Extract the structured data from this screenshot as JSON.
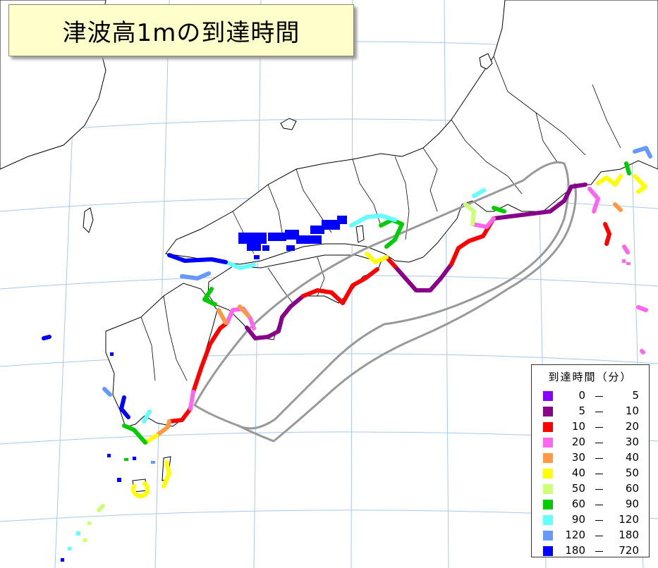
{
  "title": "津波高1mの到達時間",
  "legend": {
    "title": "到達時間（分）",
    "dash": "－",
    "items": [
      {
        "lo": "0",
        "hi": "5",
        "color": "#8800ff"
      },
      {
        "lo": "5",
        "hi": "10",
        "color": "#880088"
      },
      {
        "lo": "10",
        "hi": "20",
        "color": "#ff0000"
      },
      {
        "lo": "20",
        "hi": "30",
        "color": "#ff66ee"
      },
      {
        "lo": "30",
        "hi": "40",
        "color": "#ff9944"
      },
      {
        "lo": "40",
        "hi": "50",
        "color": "#ffff00"
      },
      {
        "lo": "50",
        "hi": "60",
        "color": "#ccff77"
      },
      {
        "lo": "60",
        "hi": "90",
        "color": "#00cc00"
      },
      {
        "lo": "90",
        "hi": "120",
        "color": "#66ffff"
      },
      {
        "lo": "120",
        "hi": "180",
        "color": "#6699ff"
      },
      {
        "lo": "180",
        "hi": "720",
        "color": "#0000ff"
      }
    ]
  },
  "colors": {
    "grid": "#a9c7e8",
    "coast": "#000000",
    "source_area": "#999999"
  }
}
